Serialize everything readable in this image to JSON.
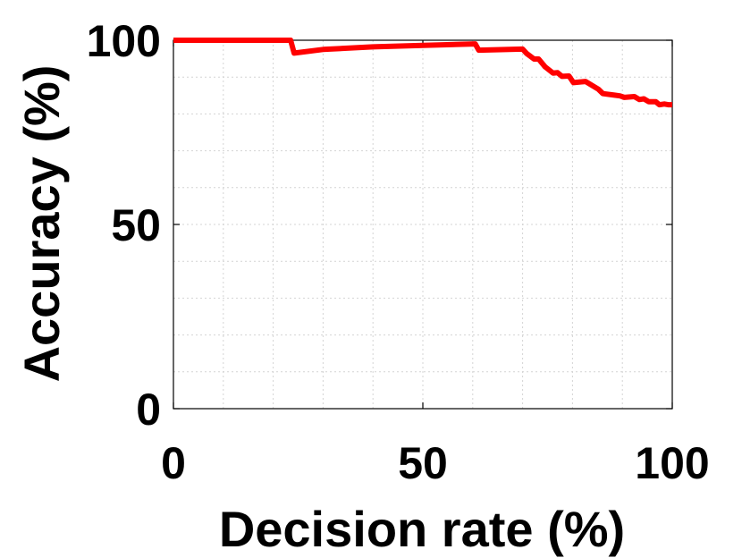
{
  "chart_data": {
    "type": "line",
    "title": "",
    "xlabel": "Decision rate (%)",
    "ylabel": "Accuracy (%)",
    "xlim": [
      0,
      100
    ],
    "ylim": [
      0,
      100
    ],
    "x_ticks": [
      "0",
      "50",
      "100"
    ],
    "y_ticks": [
      "0",
      "50",
      "100"
    ],
    "x_tick_values": [
      0,
      50,
      100
    ],
    "y_tick_values": [
      0,
      50,
      100
    ],
    "x_minor_ticks": [
      10,
      20,
      30,
      40,
      60,
      70,
      80,
      90
    ],
    "y_minor_ticks": [
      10,
      20,
      30,
      40,
      60,
      70,
      80,
      90
    ],
    "grid": true,
    "legend": "none",
    "series": [
      {
        "color": "#ff0000",
        "x": [
          0,
          23.5,
          24.2,
          30,
          40,
          50,
          60.5,
          61.2,
          70,
          70.8,
          72.3,
          73.2,
          74.5,
          76.1,
          77.0,
          77.9,
          79.3,
          80.2,
          81.6,
          82.6,
          85.2,
          86.1,
          88.4,
          89.5,
          90.4,
          92.4,
          93.4,
          94.3,
          95.3,
          96.7,
          97.4,
          98.4,
          99.2,
          100
        ],
        "y": [
          100,
          100,
          96.5,
          97.5,
          98.2,
          98.6,
          99.0,
          97.3,
          97.6,
          96.4,
          94.9,
          94.9,
          92.8,
          91.1,
          91.2,
          90.2,
          90.3,
          88.5,
          88.7,
          88.8,
          86.7,
          85.5,
          85.1,
          84.9,
          84.5,
          84.7,
          83.9,
          84.1,
          83.3,
          83.3,
          82.5,
          82.7,
          82.5,
          82.5
        ]
      }
    ]
  }
}
